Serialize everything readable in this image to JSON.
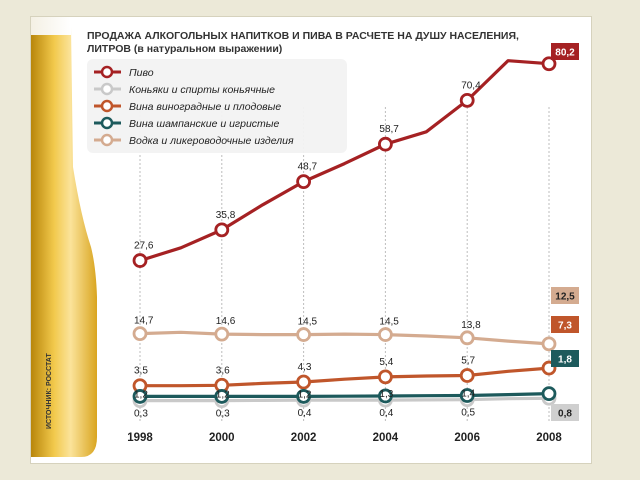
{
  "chart_data": {
    "type": "line",
    "title": "ПРОДАЖА АЛКОГОЛЬНЫХ НАПИТКОВ И ПИВА В РАСЧЕТЕ НА ДУШУ НАСЕЛЕНИЯ, ЛИТРОВ (в натуральном выражении)",
    "title_lines": [
      "ПРОДАЖА АЛКОГОЛЬНЫХ НАПИТКОВ И ПИВА В РАСЧЕТЕ НА ДУШУ НАСЕЛЕНИЯ,",
      "ЛИТРОВ (в натуральном выражении)"
    ],
    "source": "ИСТОЧНИК: РОССТАТ",
    "x": [
      1998,
      1999,
      2000,
      2001,
      2002,
      2003,
      2004,
      2005,
      2006,
      2007,
      2008
    ],
    "x_ticks": [
      "1998",
      "2000",
      "2002",
      "2004",
      "2006",
      "2008"
    ],
    "ylim": [
      0,
      82
    ],
    "grid": "vertical dashed lines at ticks",
    "legend_position": "top-left",
    "series": [
      {
        "name": "Пиво",
        "color": "#a52123",
        "values": [
          27.6,
          31.0,
          35.8,
          42.5,
          48.7,
          53.5,
          58.7,
          62.0,
          70.4,
          81.0,
          80.2
        ],
        "point_labels": [
          [
            "1998",
            "27,6"
          ],
          [
            "2000",
            "35,8"
          ],
          [
            "2002",
            "48,7"
          ],
          [
            "2004",
            "58,7"
          ],
          [
            "2006",
            "70,4"
          ]
        ],
        "end_badge": "80,2"
      },
      {
        "name": "Коньяки и спирты коньячные",
        "color": "#c9c9c9",
        "values": [
          0.3,
          0.3,
          0.3,
          0.35,
          0.4,
          0.4,
          0.4,
          0.45,
          0.5,
          0.7,
          0.8
        ],
        "point_labels": [
          [
            "1998",
            "0,3"
          ],
          [
            "2000",
            "0,3"
          ],
          [
            "2002",
            "0,4"
          ],
          [
            "2004",
            "0,4"
          ],
          [
            "2006",
            "0,5"
          ]
        ],
        "end_badge": "0,8"
      },
      {
        "name": "Вина виноградные и плодовые",
        "color": "#c0562b",
        "values": [
          3.5,
          3.5,
          3.6,
          4.0,
          4.3,
          4.9,
          5.4,
          5.6,
          5.7,
          6.6,
          7.3
        ],
        "point_labels": [
          [
            "1998",
            "3,5"
          ],
          [
            "2000",
            "3,6"
          ],
          [
            "2002",
            "4,3"
          ],
          [
            "2004",
            "5,4"
          ],
          [
            "2006",
            "5,7"
          ]
        ],
        "end_badge": "7,3"
      },
      {
        "name": "Вина шампанские и игристые",
        "color": "#1d5a5c",
        "values": [
          1.2,
          1.2,
          1.2,
          1.2,
          1.2,
          1.25,
          1.3,
          1.35,
          1.4,
          1.6,
          1.8
        ],
        "point_labels": [
          [
            "1998",
            "1,2"
          ],
          [
            "2000",
            "1,2"
          ],
          [
            "2002",
            "1,2"
          ],
          [
            "2004",
            "1,3"
          ],
          [
            "2006",
            "1,4"
          ]
        ],
        "end_badge": "1,8"
      },
      {
        "name": "Водка и ликероводочные изделия",
        "color": "#d4ab90",
        "values": [
          14.7,
          15.0,
          14.6,
          14.5,
          14.5,
          14.6,
          14.5,
          14.2,
          13.8,
          13.1,
          12.5
        ],
        "point_labels": [
          [
            "1998",
            "14,7"
          ],
          [
            "2000",
            "14,6"
          ],
          [
            "2002",
            "14,5"
          ],
          [
            "2004",
            "14,5"
          ],
          [
            "2006",
            "13,8"
          ]
        ],
        "end_badge": "12,5"
      }
    ]
  }
}
